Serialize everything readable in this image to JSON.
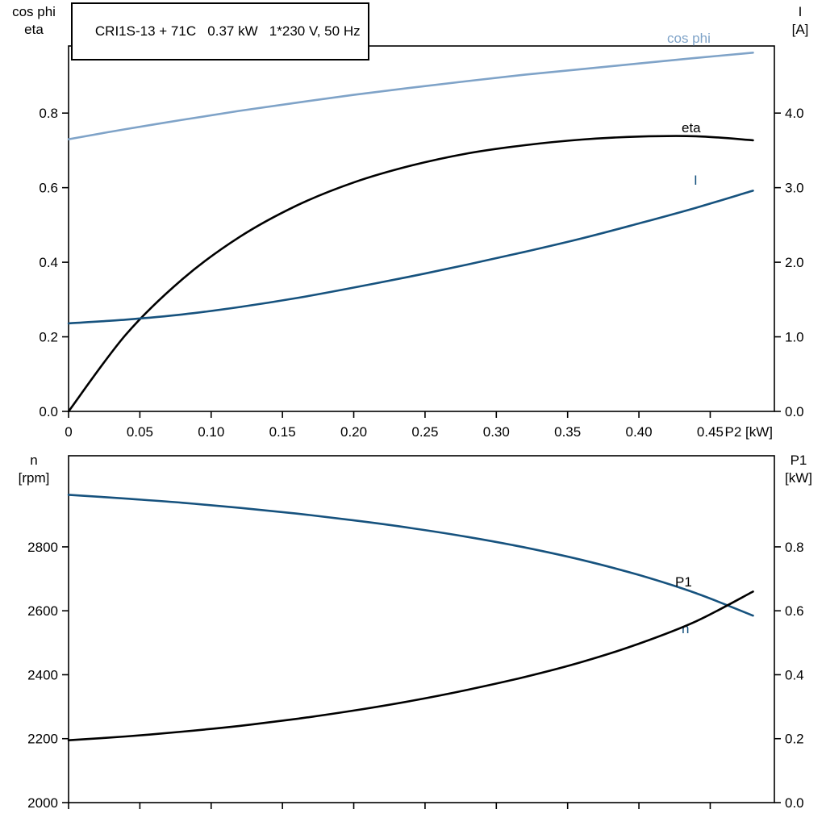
{
  "colors": {
    "light_blue": "#7FA3C8",
    "dark_blue": "#16527E",
    "black": "#000000"
  },
  "axis_corner_labels": {
    "top_left": [
      "cos phi",
      "eta"
    ],
    "top_right": [
      "I",
      "[A]"
    ],
    "bottom_left": [
      "n",
      "[rpm]"
    ],
    "bottom_right": [
      "P1",
      "[kW]"
    ]
  },
  "chart_data": [
    {
      "type": "line",
      "title": "CRI1S-13 + 71C   0.37 kW   1*230 V, 50 Hz",
      "xlabel": "P2 [kW]",
      "grid": false,
      "legend": "inline-curve-labels",
      "xlim": [
        0,
        0.495
      ],
      "x_ticks": [
        0,
        0.05,
        0.1,
        0.15,
        0.2,
        0.25,
        0.3,
        0.35,
        0.4,
        0.45
      ],
      "x_tick_labels": [
        "0",
        "0.05",
        "0.10",
        "0.15",
        "0.20",
        "0.25",
        "0.30",
        "0.35",
        "0.40",
        "0.45"
      ],
      "left_axis": {
        "labels": [
          "cos phi",
          "eta"
        ],
        "ticks": [
          0.0,
          0.2,
          0.4,
          0.6,
          0.8
        ],
        "tick_labels": [
          "0.0",
          "0.2",
          "0.4",
          "0.6",
          "0.8"
        ],
        "lim": [
          0,
          0.98
        ]
      },
      "right_axis": {
        "labels": [
          "I",
          "[A]"
        ],
        "ticks": [
          0.0,
          1.0,
          2.0,
          3.0,
          4.0
        ],
        "tick_labels": [
          "0.0",
          "1.0",
          "2.0",
          "3.0",
          "4.0"
        ],
        "lim": [
          0,
          4.9
        ]
      },
      "x": [
        0,
        0.04,
        0.08,
        0.12,
        0.16,
        0.2,
        0.24,
        0.28,
        0.32,
        0.36,
        0.4,
        0.44,
        0.48
      ],
      "series": [
        {
          "name": "cos phi",
          "axis": "left",
          "color": "#7FA3C8",
          "values": [
            0.73,
            0.757,
            0.782,
            0.806,
            0.828,
            0.849,
            0.868,
            0.886,
            0.903,
            0.918,
            0.933,
            0.948,
            0.962
          ],
          "label_x": 827,
          "label_y": 53
        },
        {
          "name": "eta",
          "axis": "left",
          "color": "#000000",
          "values": [
            0.0,
            0.205,
            0.355,
            0.468,
            0.552,
            0.614,
            0.659,
            0.692,
            0.714,
            0.729,
            0.737,
            0.738,
            0.727
          ],
          "label_x": 845,
          "label_y": 164
        },
        {
          "name": "I",
          "axis": "right",
          "color": "#16527E",
          "values": [
            1.18,
            1.23,
            1.3,
            1.4,
            1.52,
            1.66,
            1.81,
            1.97,
            2.14,
            2.32,
            2.52,
            2.73,
            2.96
          ],
          "label_x": 860,
          "label_y": 229
        }
      ]
    },
    {
      "type": "line",
      "title": "",
      "xlabel": "",
      "grid": false,
      "legend": "inline-curve-labels",
      "xlim": [
        0,
        0.495
      ],
      "x_ticks": [
        0,
        0.05,
        0.1,
        0.15,
        0.2,
        0.25,
        0.3,
        0.35,
        0.4,
        0.45
      ],
      "x_tick_labels": [],
      "left_axis": {
        "labels": [
          "n",
          "[rpm]"
        ],
        "ticks": [
          2000,
          2200,
          2400,
          2600,
          2800
        ],
        "tick_labels": [
          "2000",
          "2200",
          "2400",
          "2600",
          "2800"
        ],
        "lim": [
          2000,
          3085
        ]
      },
      "right_axis": {
        "labels": [
          "P1",
          "[kW]"
        ],
        "ticks": [
          0.0,
          0.2,
          0.4,
          0.6,
          0.8
        ],
        "tick_labels": [
          "0.0",
          "0.2",
          "0.4",
          "0.6",
          "0.8"
        ],
        "lim": [
          0,
          1.085
        ]
      },
      "x": [
        0,
        0.04,
        0.08,
        0.12,
        0.16,
        0.2,
        0.24,
        0.28,
        0.32,
        0.36,
        0.4,
        0.44,
        0.48
      ],
      "series": [
        {
          "name": "n",
          "axis": "left",
          "color": "#16527E",
          "values": [
            2963,
            2951,
            2938,
            2922,
            2904,
            2883,
            2859,
            2831,
            2798,
            2759,
            2712,
            2655,
            2585
          ],
          "label_x": 845,
          "label_y": 785
        },
        {
          "name": "P1",
          "axis": "right",
          "color": "#000000",
          "values": [
            0.195,
            0.207,
            0.222,
            0.24,
            0.262,
            0.288,
            0.318,
            0.353,
            0.393,
            0.44,
            0.497,
            0.567,
            0.66
          ],
          "label_x": 837,
          "label_y": 727
        }
      ]
    }
  ]
}
